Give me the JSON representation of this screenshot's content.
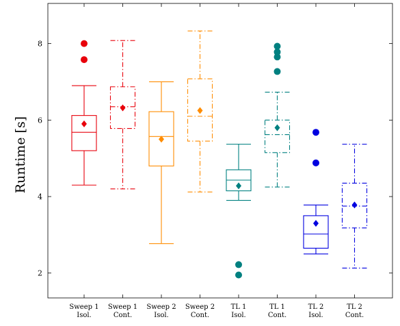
{
  "chart_data": {
    "type": "box",
    "ylabel": "Runtime [s]",
    "xlabel": "",
    "ylim": [
      1.35,
      9.05
    ],
    "yticks": [
      2,
      4,
      6,
      8
    ],
    "grid": false,
    "colors": {
      "red": "#e8000b",
      "orange": "#ff8c00",
      "teal": "#008080",
      "blue": "#0000e0"
    },
    "boxes": [
      {
        "label": [
          "Sweep 1",
          "Isol."
        ],
        "color": "#e8000b",
        "dashed": false,
        "whisker_low": 4.3,
        "q1": 5.2,
        "median": 5.68,
        "q3": 6.12,
        "whisker_high": 6.9,
        "mean": 5.9,
        "outliers": [
          8.0,
          7.58
        ]
      },
      {
        "label": [
          "Sweep 1",
          "Cont."
        ],
        "color": "#e8000b",
        "dashed": true,
        "whisker_low": 4.2,
        "q1": 5.78,
        "median": 6.35,
        "q3": 6.87,
        "whisker_high": 8.08,
        "mean": 6.32,
        "outliers": []
      },
      {
        "label": [
          "Sweep 2",
          "Isol."
        ],
        "color": "#ff8c00",
        "dashed": false,
        "whisker_low": 2.77,
        "q1": 4.8,
        "median": 5.57,
        "q3": 6.22,
        "whisker_high": 7.0,
        "mean": 5.5,
        "outliers": []
      },
      {
        "label": [
          "Sweep 2",
          "Cont."
        ],
        "color": "#ff8c00",
        "dashed": true,
        "whisker_low": 4.12,
        "q1": 5.45,
        "median": 6.1,
        "q3": 7.08,
        "whisker_high": 8.33,
        "mean": 6.25,
        "outliers": []
      },
      {
        "label": [
          "TL 1",
          "Isol."
        ],
        "color": "#008080",
        "dashed": false,
        "whisker_low": 3.9,
        "q1": 4.15,
        "median": 4.43,
        "q3": 4.7,
        "whisker_high": 5.37,
        "mean": 4.28,
        "outliers": [
          2.22,
          1.95
        ]
      },
      {
        "label": [
          "TL 1",
          "Cont."
        ],
        "color": "#008080",
        "dashed": true,
        "whisker_low": 4.25,
        "q1": 5.15,
        "median": 5.62,
        "q3": 6.0,
        "whisker_high": 6.73,
        "mean": 5.8,
        "outliers": [
          7.93,
          7.78,
          7.65,
          7.27
        ]
      },
      {
        "label": [
          "TL 2",
          "Isol."
        ],
        "color": "#0000e0",
        "dashed": false,
        "whisker_low": 2.5,
        "q1": 2.65,
        "median": 3.02,
        "q3": 3.5,
        "whisker_high": 3.78,
        "mean": 3.3,
        "outliers": [
          5.68,
          4.88
        ]
      },
      {
        "label": [
          "TL 2",
          "Cont."
        ],
        "color": "#0000e0",
        "dashed": true,
        "whisker_low": 2.13,
        "q1": 3.18,
        "median": 3.75,
        "q3": 4.35,
        "whisker_high": 5.37,
        "mean": 3.78,
        "outliers": []
      }
    ]
  }
}
